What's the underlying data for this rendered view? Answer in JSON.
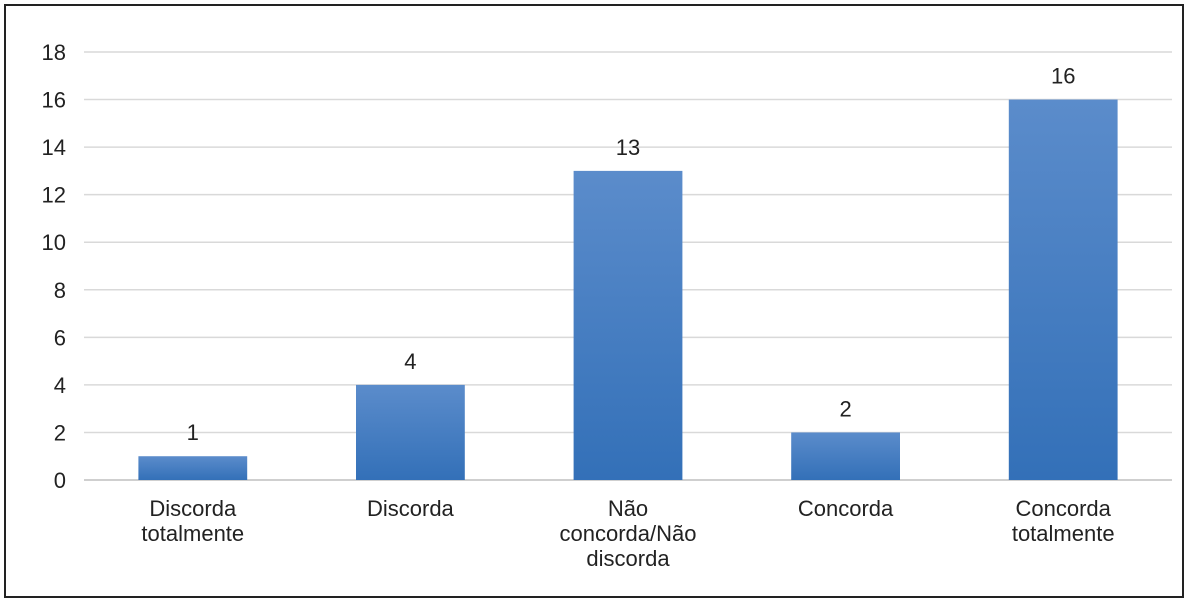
{
  "chart_data": {
    "type": "bar",
    "categories": [
      [
        "Discorda",
        "totalmente"
      ],
      [
        "Discorda"
      ],
      [
        "Não",
        "concorda/Não",
        "discorda"
      ],
      [
        "Concorda"
      ],
      [
        "Concorda",
        "totalmente"
      ]
    ],
    "values": [
      1,
      4,
      13,
      2,
      16
    ],
    "ylim": [
      0,
      18
    ],
    "yticks": [
      0,
      2,
      4,
      6,
      8,
      10,
      12,
      14,
      16,
      18
    ],
    "grid": true,
    "legend": "none",
    "title": "",
    "xlabel": "",
    "ylabel": "",
    "colors": {
      "bar_top": "#5b8ccb",
      "bar_bottom": "#3370b8",
      "grid": "#d9d9d9",
      "text": "#222222"
    }
  }
}
